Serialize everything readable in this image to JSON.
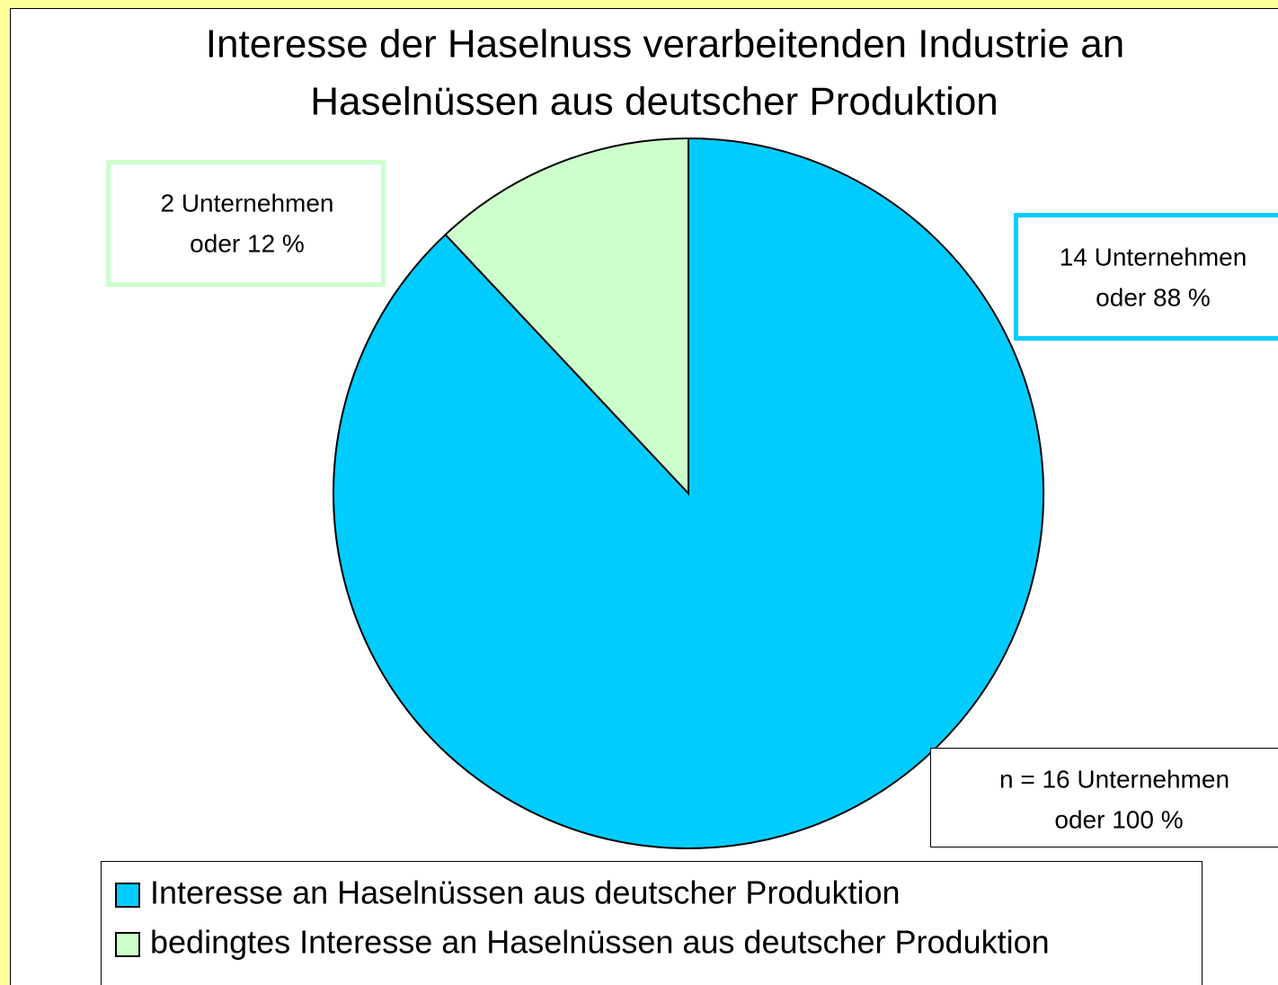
{
  "chart_data": {
    "type": "pie",
    "title": [
      "Interesse der Haselnuss verarbeitenden Industrie an",
      "Haselnüssen aus deutscher Produktion"
    ],
    "categories": [
      "Interesse an Haselnüssen aus deutscher Produktion",
      "bedingtes Interesse an Haselnüssen aus deutscher Produktion"
    ],
    "values": [
      88,
      12
    ],
    "value_labels": [
      [
        "14 Unternehmen",
        "oder 88 %"
      ],
      [
        "2 Unternehmen",
        "oder 12 %"
      ]
    ],
    "colors": [
      "#00ccff",
      "#ccffcc"
    ],
    "annotation": [
      "n = 16 Unternehmen",
      "oder 100 %"
    ],
    "legend": "bottom"
  }
}
